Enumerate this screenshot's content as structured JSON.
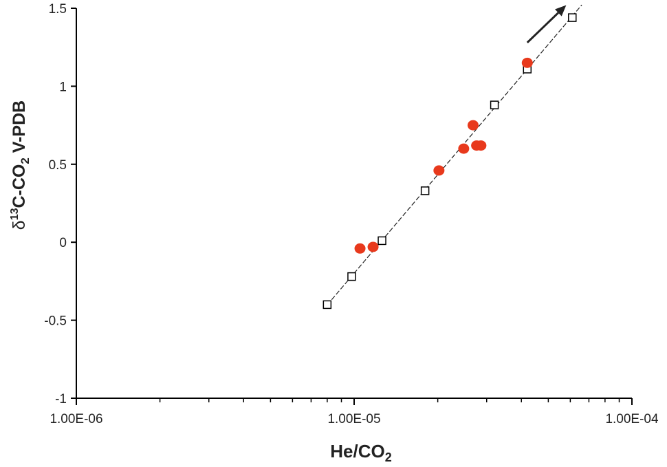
{
  "chart_data": {
    "type": "scatter",
    "title": "",
    "xlabel": {
      "main": "He/CO",
      "sub": "2"
    },
    "ylabel": {
      "prefix": "δ",
      "sup": "13",
      "main": "C-CO",
      "sub": "2",
      "suffix": " V-PDB"
    },
    "x_scale": "log",
    "xlim": [
      1e-06,
      0.0001
    ],
    "ylim": [
      -1,
      1.5
    ],
    "x_ticks": [
      1e-06,
      1e-05,
      0.0001
    ],
    "x_tick_labels": [
      "1.00E-06",
      "1.00E-05",
      "1.00E-04"
    ],
    "y_ticks": [
      -1,
      -0.5,
      0,
      0.5,
      1,
      1.5
    ],
    "y_tick_labels": [
      "-1",
      "-0.5",
      "0",
      "0.5",
      "1",
      "1.5"
    ],
    "grid": false,
    "legend": "none",
    "series": [
      {
        "marker": "open-square",
        "line": "dashed",
        "color": "#000000",
        "points": [
          {
            "x": 8e-06,
            "y": -0.4
          },
          {
            "x": 9.8e-06,
            "y": -0.22
          },
          {
            "x": 1.26e-05,
            "y": 0.01
          },
          {
            "x": 1.8e-05,
            "y": 0.33
          },
          {
            "x": 3.2e-05,
            "y": 0.88
          },
          {
            "x": 4.2e-05,
            "y": 1.11
          },
          {
            "x": 6.1e-05,
            "y": 1.44
          }
        ]
      },
      {
        "marker": "filled-circle",
        "color": "#e8391c",
        "points": [
          {
            "x": 1.05e-05,
            "y": -0.04
          },
          {
            "x": 1.17e-05,
            "y": -0.03
          },
          {
            "x": 2.02e-05,
            "y": 0.46
          },
          {
            "x": 2.48e-05,
            "y": 0.6
          },
          {
            "x": 2.68e-05,
            "y": 0.75
          },
          {
            "x": 2.76e-05,
            "y": 0.62
          },
          {
            "x": 2.86e-05,
            "y": 0.62
          },
          {
            "x": 4.2e-05,
            "y": 1.15
          }
        ]
      }
    ],
    "annotations": [
      {
        "type": "arrow",
        "from": {
          "x": 4.2e-05,
          "y": 1.28
        },
        "to": {
          "x": 5.8e-05,
          "y": 1.52
        },
        "color": "#222222"
      }
    ]
  }
}
